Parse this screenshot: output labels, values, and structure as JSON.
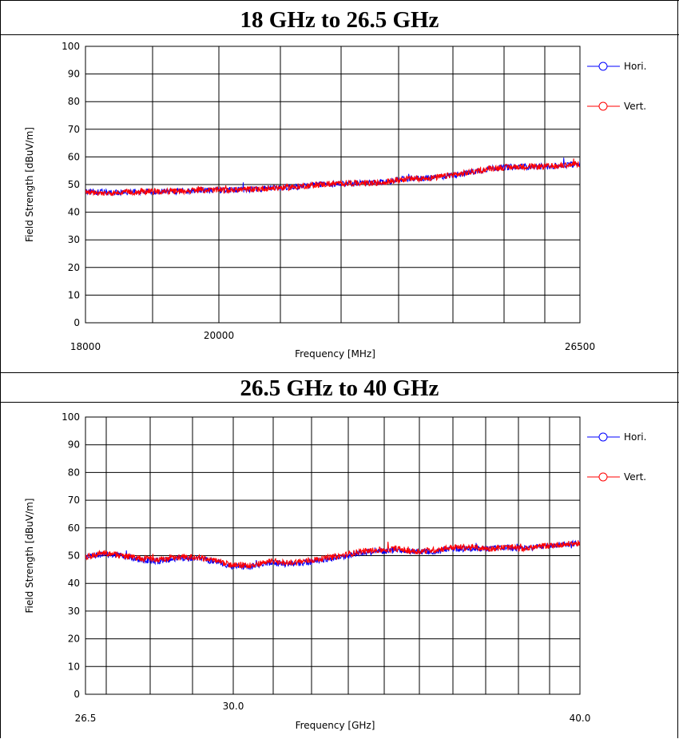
{
  "chart_data": [
    {
      "type": "line",
      "title": "18 GHz to 26.5 GHz",
      "xlabel": "Frequency [MHz]",
      "ylabel": "Field Strength [dBuV/m]",
      "xlim": [
        18000,
        26500
      ],
      "ylim": [
        0,
        100
      ],
      "yticks": [
        "0",
        "10",
        "20",
        "30",
        "40",
        "50",
        "60",
        "70",
        "80",
        "90",
        "100"
      ],
      "xtick_labels": [
        "18000",
        "20000",
        "26500"
      ],
      "grid": true,
      "legend_position": "right",
      "legend": [
        "Hori.",
        "Vert."
      ],
      "series": [
        {
          "name": "Hori.",
          "color": "#0000ff",
          "x": [
            18000,
            18500,
            19000,
            19500,
            20000,
            20500,
            21000,
            21500,
            22000,
            22500,
            23000,
            23500,
            24000,
            24500,
            25000,
            25500,
            26000,
            26500
          ],
          "values": [
            47.5,
            47,
            47.5,
            47.5,
            48,
            48,
            48.5,
            49,
            50,
            50.5,
            50.5,
            52,
            52.5,
            54,
            56,
            56.5,
            56.5,
            57.5
          ]
        },
        {
          "name": "Vert.",
          "color": "#ff0000",
          "x": [
            18000,
            18500,
            19000,
            19500,
            20000,
            20500,
            21000,
            21500,
            22000,
            22500,
            23000,
            23500,
            24000,
            24500,
            25000,
            25500,
            26000,
            26500
          ],
          "values": [
            47,
            47,
            47.5,
            47.5,
            48,
            48,
            48.5,
            49,
            50,
            50.5,
            50.5,
            52,
            52.5,
            54,
            56,
            56.5,
            56.5,
            57.5
          ]
        }
      ]
    },
    {
      "type": "line",
      "title": "26.5 GHz to 40 GHz",
      "xlabel": "Frequency [GHz]",
      "ylabel": "Field Strength [dBuV/m]",
      "xlim": [
        26.5,
        40.0
      ],
      "ylim": [
        0,
        100
      ],
      "yticks": [
        "0",
        "10",
        "20",
        "30",
        "40",
        "50",
        "60",
        "70",
        "80",
        "90",
        "100"
      ],
      "xtick_labels": [
        "26.5",
        "30.0",
        "40.0"
      ],
      "grid": true,
      "legend_position": "right",
      "legend": [
        "Hori.",
        "Vert."
      ],
      "series": [
        {
          "name": "Hori.",
          "color": "#0000ff",
          "x": [
            26.5,
            27.0,
            27.5,
            28.0,
            28.5,
            29.0,
            29.5,
            30.0,
            30.5,
            31.0,
            31.5,
            32.0,
            32.5,
            33.0,
            33.5,
            34.0,
            34.5,
            35.0,
            35.5,
            36.0,
            36.5,
            37.0,
            37.5,
            38.0,
            38.5,
            39.0,
            39.5,
            40.0
          ],
          "values": [
            49.5,
            50.5,
            50,
            48.5,
            48,
            49,
            49,
            48,
            46,
            46,
            47.5,
            47,
            47.5,
            48.5,
            49.5,
            51,
            51.5,
            52,
            51.5,
            51.5,
            52.5,
            52.5,
            52.5,
            53,
            52.5,
            53.5,
            54,
            54.5
          ]
        },
        {
          "name": "Vert.",
          "color": "#ff0000",
          "x": [
            26.5,
            27.0,
            27.5,
            28.0,
            28.5,
            29.0,
            29.5,
            30.0,
            30.5,
            31.0,
            31.5,
            32.0,
            32.5,
            33.0,
            33.5,
            34.0,
            34.5,
            35.0,
            35.5,
            36.0,
            36.5,
            37.0,
            37.5,
            38.0,
            38.5,
            39.0,
            39.5,
            40.0
          ],
          "values": [
            49.5,
            51,
            50,
            49,
            48.5,
            49.5,
            49.5,
            48.5,
            46.5,
            46.5,
            48,
            47.5,
            48,
            49,
            50,
            51.5,
            52,
            52.5,
            51.5,
            52,
            53,
            53,
            52.5,
            53,
            52.5,
            53.5,
            54,
            54.5
          ]
        }
      ]
    }
  ]
}
